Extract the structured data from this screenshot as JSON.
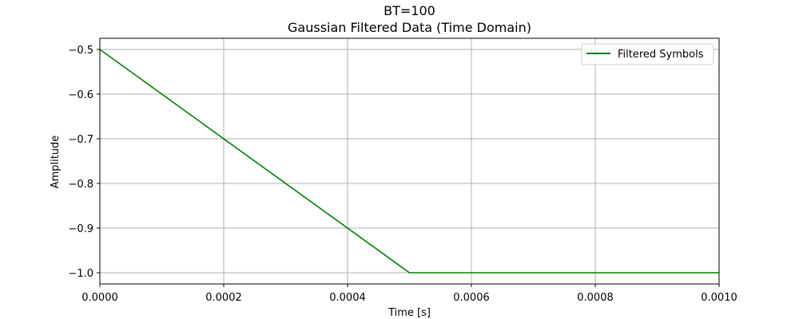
{
  "chart_data": {
    "type": "line",
    "title": "BT=100",
    "subtitle": "Gaussian Filtered Data (Time Domain)",
    "xlabel": "Time [s]",
    "ylabel": "Amplitude",
    "xlim": [
      0.0,
      0.001
    ],
    "ylim": [
      -1.025,
      -0.475
    ],
    "x_ticks": [
      0.0,
      0.0002,
      0.0004,
      0.0006,
      0.0008,
      0.001
    ],
    "x_tick_labels": [
      "0.0000",
      "0.0002",
      "0.0004",
      "0.0006",
      "0.0008",
      "0.0010"
    ],
    "y_ticks": [
      -0.5,
      -0.6,
      -0.7,
      -0.8,
      -0.9,
      -1.0
    ],
    "y_tick_labels": [
      "−0.5",
      "−0.6",
      "−0.7",
      "−0.8",
      "−0.9",
      "−1.0"
    ],
    "grid": true,
    "legend_position": "top-right",
    "series": [
      {
        "name": "Filtered Symbols",
        "color": "#008000",
        "x": [
          0.0,
          0.0005,
          0.001
        ],
        "y": [
          -0.5,
          -1.0,
          -1.0
        ]
      }
    ]
  }
}
